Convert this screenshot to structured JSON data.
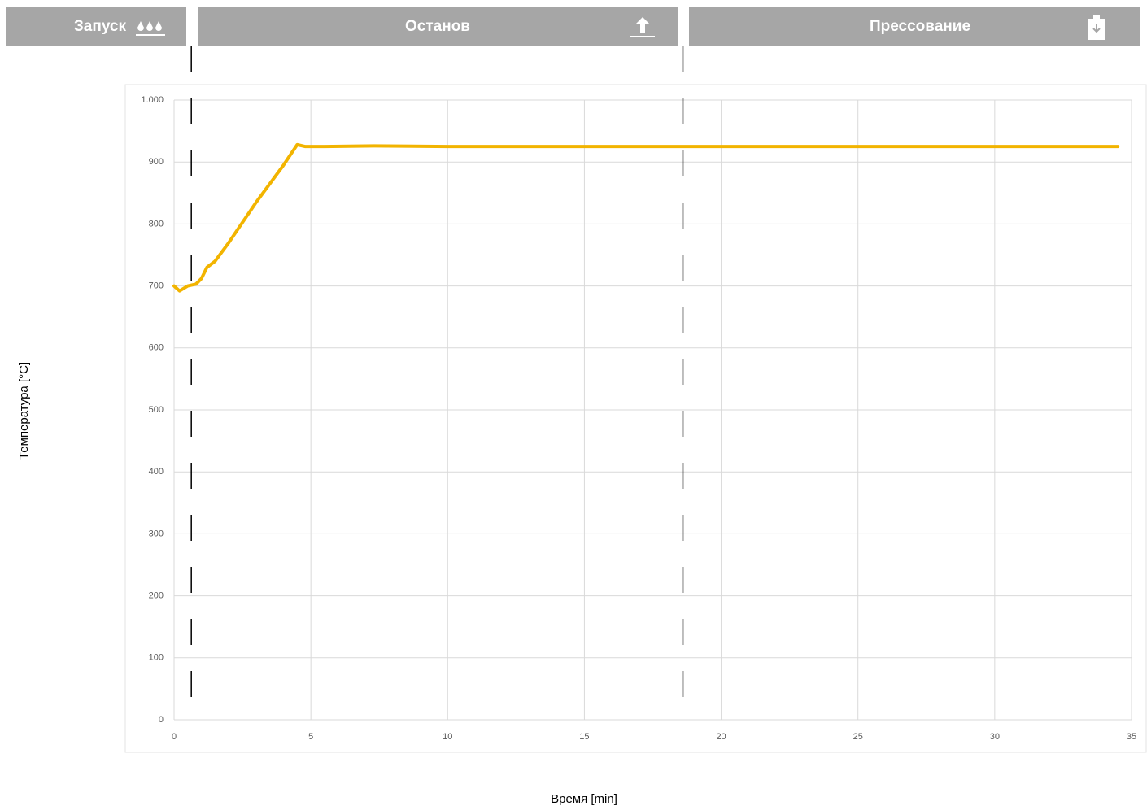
{
  "phases": [
    "Запуск",
    "Останов",
    "Прессование"
  ],
  "chart_data": {
    "type": "line",
    "y_label": "Температура [°C]",
    "x_label": "Время [min]",
    "x": [
      0,
      0.2,
      0.5,
      0.8,
      1.0,
      1.2,
      1.5,
      2,
      3,
      4,
      4.5,
      4.8,
      5.5,
      7.3,
      10,
      20,
      30,
      34.5
    ],
    "values": [
      700,
      692,
      700,
      703,
      712,
      730,
      740,
      770,
      835,
      895,
      928,
      925,
      925,
      926,
      925,
      925,
      925,
      925
    ],
    "color": "#f2b400",
    "xlim": [
      0,
      35
    ],
    "xticks": [
      0,
      5,
      10,
      15,
      20,
      25,
      30,
      35
    ],
    "ylim": [
      0,
      1000
    ],
    "yticks": [
      0,
      100,
      200,
      300,
      400,
      500,
      600,
      700,
      800,
      900,
      {
        "value": 1000,
        "label": "1.000"
      }
    ],
    "grid": true,
    "phase_boundaries": [
      0.63,
      18.6
    ]
  }
}
